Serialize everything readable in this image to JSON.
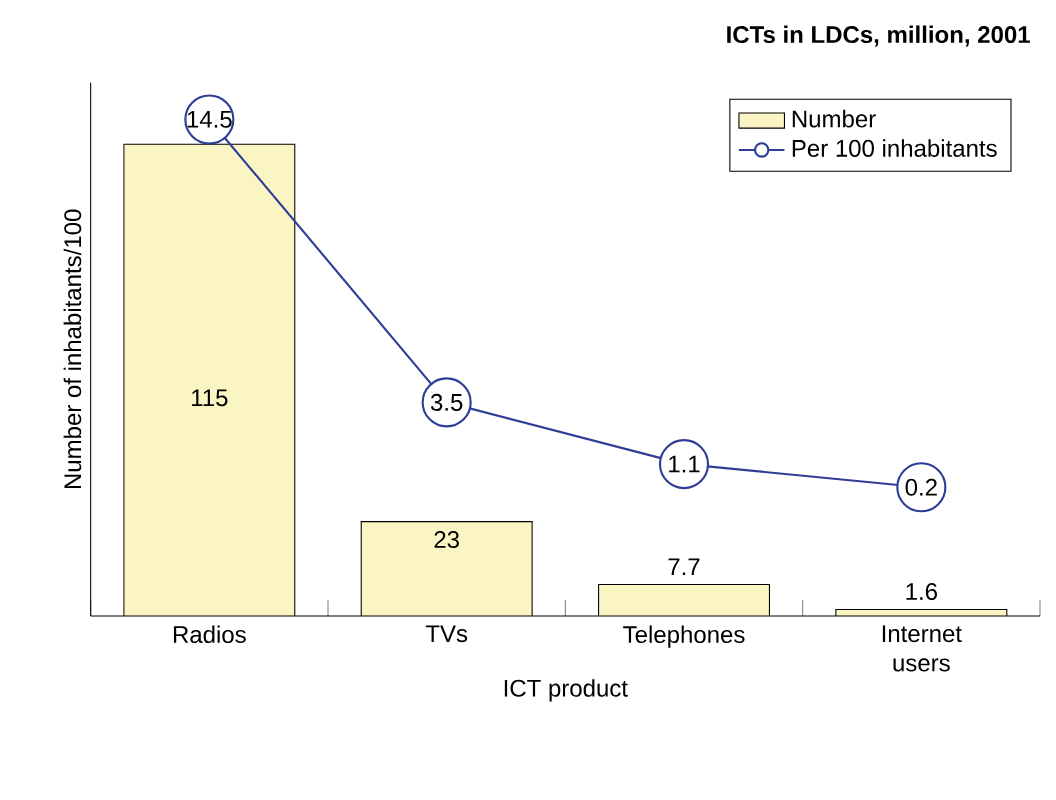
{
  "chart_data": {
    "type": "bar",
    "title": "ICTs in LDCs, million, 2001",
    "xlabel": "ICT product",
    "ylabel": "Number of inhabitants/100",
    "categories": [
      "Radios",
      "TVs",
      "Telephones",
      "Internet users"
    ],
    "series": [
      {
        "name": "Number",
        "color": "#fbf5c3",
        "values": [
          115,
          23,
          7.7,
          1.6
        ]
      },
      {
        "name": "Per 100 inhabitants",
        "type": "line",
        "axis": "y2",
        "color": "#2e3d96",
        "marker": "circle",
        "values": [
          14.5,
          3.5,
          1.1,
          0.2
        ]
      }
    ],
    "ylim": [
      0,
      130
    ],
    "data_labels": true,
    "legend": "top right",
    "tick_labels": "x"
  }
}
